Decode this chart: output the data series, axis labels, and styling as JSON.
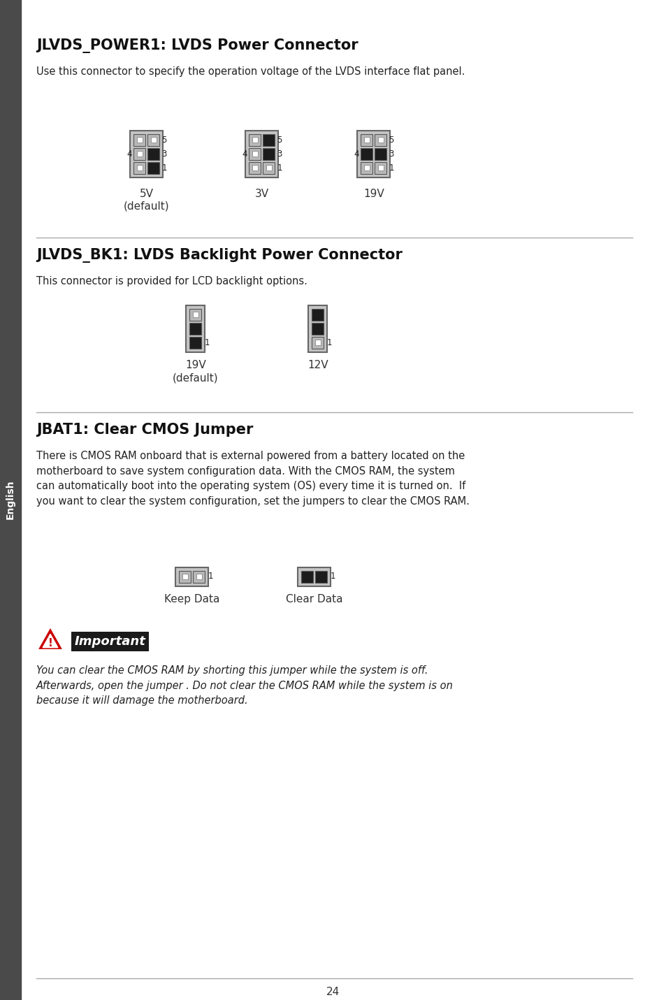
{
  "bg_color": "#ffffff",
  "sidebar_color": "#4a4a4a",
  "title1": "JLVDS_POWER1: LVDS Power Connector",
  "desc1": "Use this connector to specify the operation voltage of the LVDS interface flat panel.",
  "title2": "JLVDS_BK1: LVDS Backlight Power Connector",
  "desc2": "This connector is provided for LCD backlight options.",
  "title3": "JBAT1: Clear CMOS Jumper",
  "desc3": "There is CMOS RAM onboard that is external powered from a battery located on the\nmotherboard to save system configuration data. With the CMOS RAM, the system\ncan automatically boot into the operating system (OS) every time it is turned on.  If\nyou want to clear the system configuration, set the jumpers to clear the CMOS RAM.",
  "important_text": "Important",
  "important_desc": "You can clear the CMOS RAM by shorting this jumper while the system is off.\nAfterwards, open the jumper . Do not clear the CMOS RAM while the system is on\nbecause it will damage the motherboard.",
  "page_number": "24"
}
